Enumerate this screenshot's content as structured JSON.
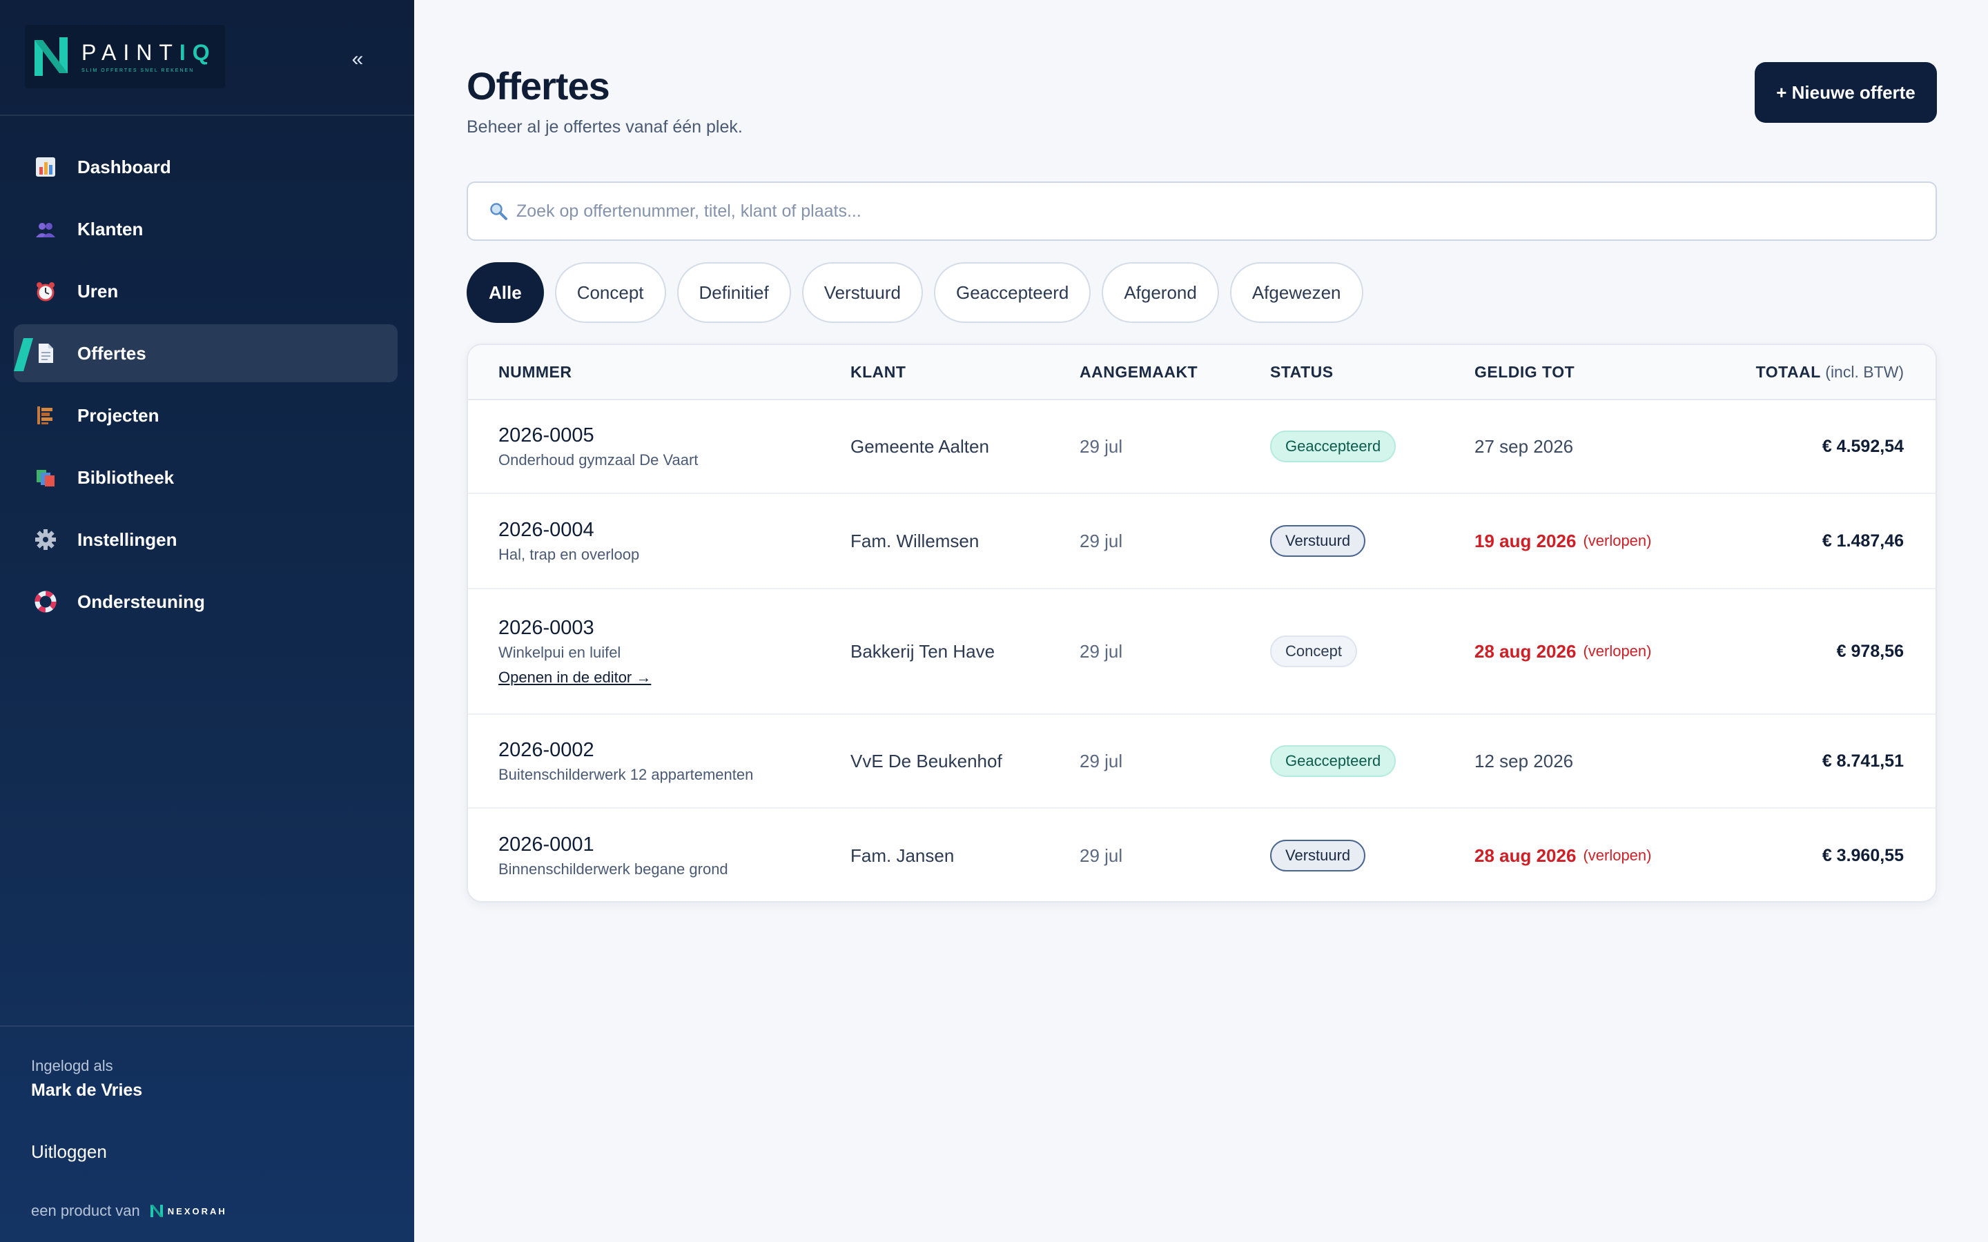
{
  "brand": {
    "name_plain": "PAINT",
    "name_accent": "IQ",
    "tagline": "SLIM OFFERTES SNEL REKENEN",
    "colors": {
      "teal": "#1fc8b0",
      "navy": "#0d1f3c"
    }
  },
  "sidebar": {
    "collapse_label": "«",
    "items": [
      {
        "label": "Dashboard",
        "icon": "bar-chart-icon"
      },
      {
        "label": "Klanten",
        "icon": "people-icon"
      },
      {
        "label": "Uren",
        "icon": "alarm-clock-icon"
      },
      {
        "label": "Offertes",
        "icon": "document-icon",
        "active": true
      },
      {
        "label": "Projecten",
        "icon": "brick-icon"
      },
      {
        "label": "Bibliotheek",
        "icon": "books-icon"
      },
      {
        "label": "Instellingen",
        "icon": "gear-icon"
      },
      {
        "label": "Ondersteuning",
        "icon": "lifebuoy-icon"
      }
    ],
    "user_caption": "Ingelogd als",
    "user_name": "Mark de Vries",
    "logout_label": "Uitloggen",
    "product_by": "een product van",
    "company": "NEXORAH"
  },
  "header": {
    "title": "Offertes",
    "subtitle": "Beheer al je offertes vanaf één plek.",
    "new_button": "+ Nieuwe offerte"
  },
  "search": {
    "placeholder": "Zoek op offertenummer, titel, klant of plaats...",
    "value": ""
  },
  "filters": [
    "Alle",
    "Concept",
    "Definitief",
    "Verstuurd",
    "Geaccepteerd",
    "Afgerond",
    "Afgewezen"
  ],
  "active_filter": "Alle",
  "table": {
    "headers": {
      "nummer": "NUMMER",
      "klant": "KLANT",
      "aangemaakt": "AANGEMAAKT",
      "status": "STATUS",
      "geldig_tot": "GELDIG TOT",
      "totaal": "TOTAAL",
      "totaal_suffix": "(incl. BTW)"
    },
    "rows": [
      {
        "number": "2026-0005",
        "title": "Onderhoud gymzaal De Vaart",
        "client": "Gemeente Aalten",
        "created": "29 jul",
        "status": "Geaccepteerd",
        "status_key": "geaccepteerd",
        "valid_until": "27 sep 2026",
        "expired": false,
        "total": "€ 4.592,54"
      },
      {
        "number": "2026-0004",
        "title": "Hal, trap en overloop",
        "client": "Fam. Willemsen",
        "created": "29 jul",
        "status": "Verstuurd",
        "status_key": "verstuurd",
        "valid_until": "19 aug 2026",
        "expired": true,
        "expired_note": "(verlopen)",
        "total": "€ 1.487,46"
      },
      {
        "number": "2026-0003",
        "title": "Winkelpui en luifel",
        "client": "Bakkerij Ten Have",
        "created": "29 jul",
        "status": "Concept",
        "status_key": "concept",
        "valid_until": "28 aug 2026",
        "expired": true,
        "expired_note": "(verlopen)",
        "total": "€ 978,56",
        "link": "Openen in de editor →"
      },
      {
        "number": "2026-0002",
        "title": "Buitenschilderwerk 12 appartementen",
        "client": "VvE De Beukenhof",
        "created": "29 jul",
        "status": "Geaccepteerd",
        "status_key": "geaccepteerd",
        "valid_until": "12 sep 2026",
        "expired": false,
        "total": "€ 8.741,51"
      },
      {
        "number": "2026-0001",
        "title": "Binnenschilderwerk begane grond",
        "client": "Fam. Jansen",
        "created": "29 jul",
        "status": "Verstuurd",
        "status_key": "verstuurd",
        "valid_until": "28 aug 2026",
        "expired": true,
        "expired_note": "(verlopen)",
        "total": "€ 3.960,55"
      }
    ]
  }
}
